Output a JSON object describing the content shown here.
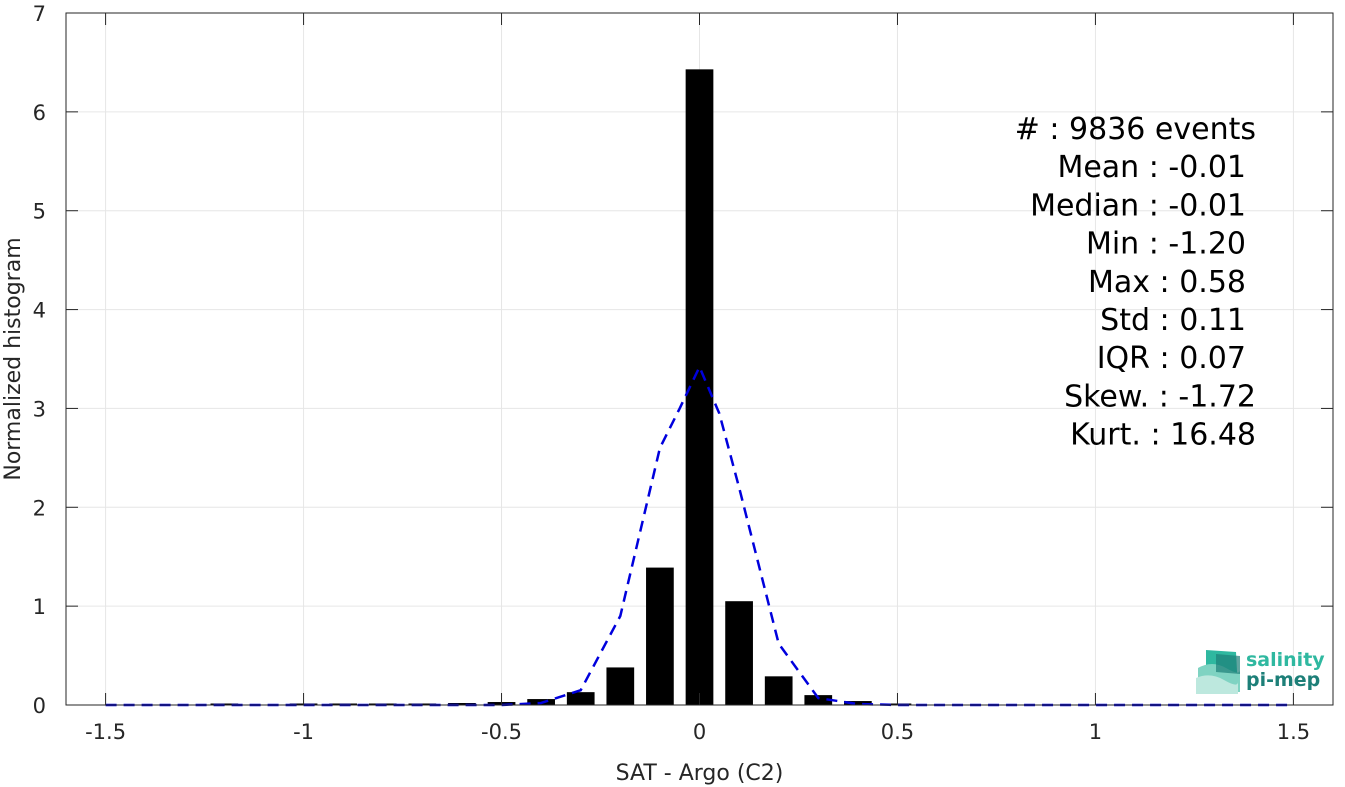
{
  "chart_data": {
    "type": "bar",
    "xlabel": "SAT - Argo (C2)",
    "ylabel": "Normalized histogram",
    "xlim": [
      -1.6,
      1.6
    ],
    "ylim": [
      0,
      7
    ],
    "grid": true,
    "x_ticks": [
      -1.5,
      -1,
      -0.5,
      0,
      0.5,
      1,
      1.5
    ],
    "x_tick_labels": [
      "-1.5",
      "-1",
      "-0.5",
      "0",
      "0.5",
      "1",
      "1.5"
    ],
    "y_ticks": [
      0,
      1,
      2,
      3,
      4,
      5,
      6,
      7
    ],
    "y_tick_labels": [
      "0",
      "1",
      "2",
      "3",
      "4",
      "5",
      "6",
      "7"
    ],
    "bar_width": 0.07,
    "bars": [
      {
        "x": -1.5,
        "y": 0.0
      },
      {
        "x": -1.4,
        "y": 0.0
      },
      {
        "x": -1.3,
        "y": 0.0
      },
      {
        "x": -1.2,
        "y": 0.003
      },
      {
        "x": -1.1,
        "y": 0.0
      },
      {
        "x": -1.0,
        "y": 0.003
      },
      {
        "x": -0.9,
        "y": 0.003
      },
      {
        "x": -0.8,
        "y": 0.01
      },
      {
        "x": -0.7,
        "y": 0.005
      },
      {
        "x": -0.6,
        "y": 0.02
      },
      {
        "x": -0.5,
        "y": 0.03
      },
      {
        "x": -0.4,
        "y": 0.06
      },
      {
        "x": -0.3,
        "y": 0.13
      },
      {
        "x": -0.2,
        "y": 0.38
      },
      {
        "x": -0.1,
        "y": 1.39
      },
      {
        "x": 0.0,
        "y": 6.43
      },
      {
        "x": 0.1,
        "y": 1.05
      },
      {
        "x": 0.2,
        "y": 0.29
      },
      {
        "x": 0.3,
        "y": 0.1
      },
      {
        "x": 0.4,
        "y": 0.04
      },
      {
        "x": 0.5,
        "y": 0.003
      }
    ],
    "series": [
      {
        "style": "dashed",
        "color": "#0000dd",
        "x": [
          -1.5,
          -1.4,
          -1.3,
          -1.2,
          -1.1,
          -1.0,
          -0.9,
          -0.8,
          -0.7,
          -0.6,
          -0.5,
          -0.4,
          -0.3,
          -0.2,
          -0.1,
          -0.05,
          0.0,
          0.05,
          0.1,
          0.2,
          0.3,
          0.4,
          0.5,
          0.6,
          0.7,
          0.8,
          0.9,
          1.0,
          1.1,
          1.2,
          1.3,
          1.4,
          1.5
        ],
        "y": [
          0.0,
          0.0,
          0.0,
          0.0,
          0.0,
          0.0,
          0.0,
          0.0,
          0.0,
          0.0,
          0.0,
          0.02,
          0.15,
          0.9,
          2.6,
          3.0,
          3.42,
          2.95,
          2.2,
          0.62,
          0.07,
          0.01,
          0.0,
          0.0,
          0.0,
          0.0,
          0.0,
          0.0,
          0.0,
          0.0,
          0.0,
          0.0,
          0.0
        ]
      }
    ],
    "stats": [
      "#  : 9836 events",
      "Mean : -0.01",
      "Median : -0.01",
      "Min : -1.20",
      "Max : 0.58",
      "Std : 0.11",
      "IQR : 0.07",
      "Skew. : -1.72",
      "Kurt. : 16.48"
    ],
    "colors": {
      "bars": "#000000",
      "fit_line": "#0000dd",
      "grid": "#e6e6e6",
      "axes": "#262626"
    }
  },
  "logo": {
    "line1": "salinity",
    "line2": "pi-mep",
    "color1": "#2fb8a0",
    "color2": "#1d7f78"
  }
}
